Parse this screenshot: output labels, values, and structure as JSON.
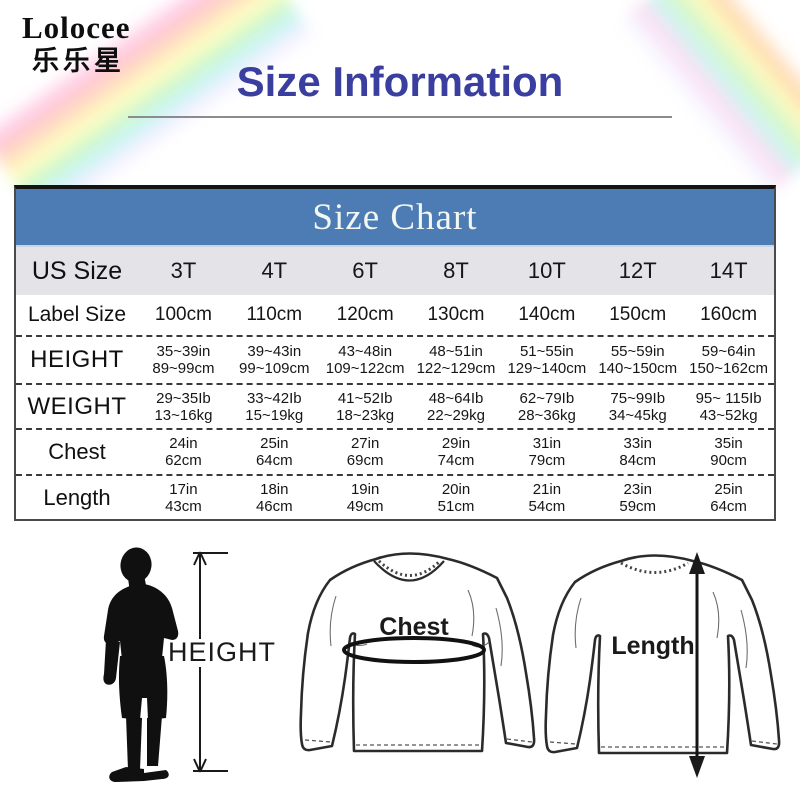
{
  "brand": {
    "name": "Lolocee",
    "chinese_name": "乐乐星"
  },
  "page_title": "Size Information",
  "table": {
    "title": "Size Chart",
    "header_row": {
      "label": "US Size",
      "values": [
        "3T",
        "4T",
        "6T",
        "8T",
        "10T",
        "12T",
        "14T"
      ]
    },
    "rows": [
      {
        "label": "Label Size",
        "cells": [
          [
            "100cm"
          ],
          [
            "110cm"
          ],
          [
            "120cm"
          ],
          [
            "130cm"
          ],
          [
            "140cm"
          ],
          [
            "150cm"
          ],
          [
            "160cm"
          ]
        ]
      },
      {
        "label": "HEIGHT",
        "cells": [
          [
            "35~39in",
            "89~99cm"
          ],
          [
            "39~43in",
            "99~109cm"
          ],
          [
            "43~48in",
            "109~122cm"
          ],
          [
            "48~51in",
            "122~129cm"
          ],
          [
            "51~55in",
            "129~140cm"
          ],
          [
            "55~59in",
            "140~150cm"
          ],
          [
            "59~64in",
            "150~162cm"
          ]
        ]
      },
      {
        "label": "WEIGHT",
        "cells": [
          [
            "29~35Ib",
            "13~16kg"
          ],
          [
            "33~42Ib",
            "15~19kg"
          ],
          [
            "41~52Ib",
            "18~23kg"
          ],
          [
            "48~64Ib",
            "22~29kg"
          ],
          [
            "62~79Ib",
            "28~36kg"
          ],
          [
            "75~99Ib",
            "34~45kg"
          ],
          [
            "95~ 115Ib",
            "43~52kg"
          ]
        ]
      },
      {
        "label": "Chest",
        "cells": [
          [
            "24in",
            "62cm"
          ],
          [
            "25in",
            "64cm"
          ],
          [
            "27in",
            "69cm"
          ],
          [
            "29in",
            "74cm"
          ],
          [
            "31in",
            "79cm"
          ],
          [
            "33in",
            "84cm"
          ],
          [
            "35in",
            "90cm"
          ]
        ]
      },
      {
        "label": "Length",
        "cells": [
          [
            "17in",
            "43cm"
          ],
          [
            "18in",
            "46cm"
          ],
          [
            "19in",
            "49cm"
          ],
          [
            "20in",
            "51cm"
          ],
          [
            "21in",
            "54cm"
          ],
          [
            "23in",
            "59cm"
          ],
          [
            "25in",
            "64cm"
          ]
        ]
      }
    ]
  },
  "diagram": {
    "height_label": "HEIGHT",
    "chest_label": "Chest",
    "length_label": "Length"
  },
  "colors": {
    "header_blue": "#4d7cb5",
    "title_indigo": "#3a3e9e",
    "us_row_gray": "#e4e3e8"
  }
}
